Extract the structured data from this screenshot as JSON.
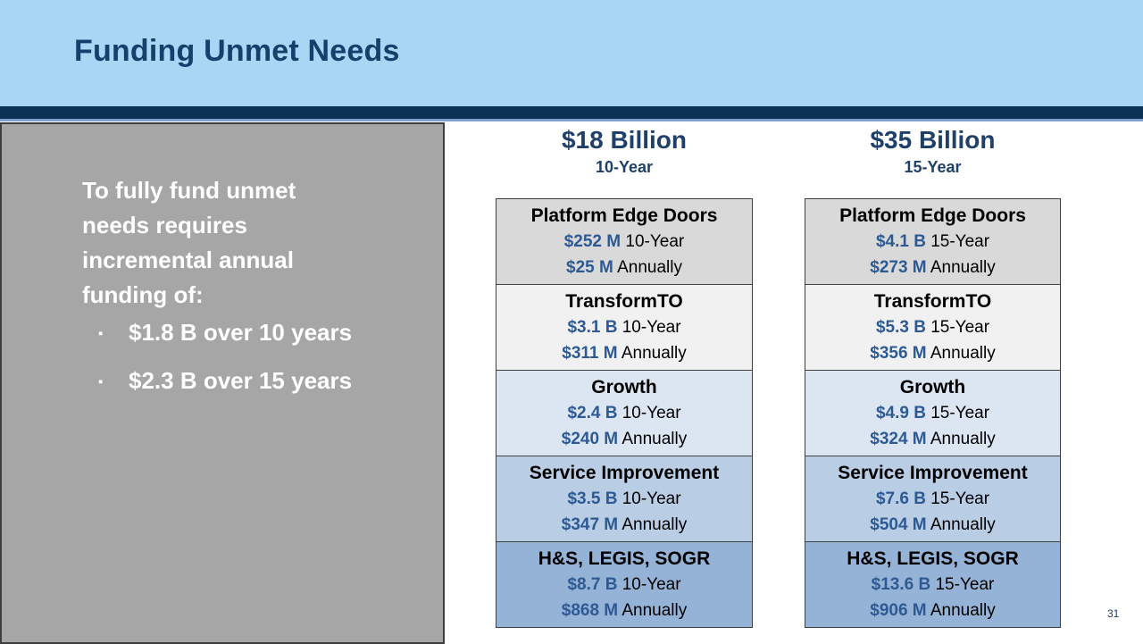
{
  "slide": {
    "title": "Funding Unmet Needs",
    "page_number": "31"
  },
  "sidebar": {
    "intro_lines": [
      "To fully fund unmet",
      "needs requires",
      "incremental annual",
      "funding of:"
    ],
    "bullet_glyph": "▪",
    "bullets": [
      "$1.8 B over 10 years",
      "$2.3 B over 15 years"
    ]
  },
  "columns": [
    {
      "header_amount": "$18 Billion",
      "header_period": "10-Year",
      "boxes": [
        {
          "title": "Platform Edge Doors",
          "total_value": "$252 M",
          "total_label": "10-Year",
          "annual_value": "$25 M",
          "annual_label": "Annually"
        },
        {
          "title": "TransformTO",
          "total_value": "$3.1 B",
          "total_label": "10-Year",
          "annual_value": "$311 M",
          "annual_label": "Annually"
        },
        {
          "title": "Growth",
          "total_value": "$2.4 B",
          "total_label": "10-Year",
          "annual_value": "$240 M",
          "annual_label": "Annually"
        },
        {
          "title": "Service Improvement",
          "total_value": "$3.5 B",
          "total_label": "10-Year",
          "annual_value": "$347 M",
          "annual_label": "Annually"
        },
        {
          "title": "H&S, LEGIS, SOGR",
          "total_value": "$8.7 B",
          "total_label": "10-Year",
          "annual_value": "$868 M",
          "annual_label": "Annually"
        }
      ]
    },
    {
      "header_amount": "$35 Billion",
      "header_period": "15-Year",
      "boxes": [
        {
          "title": "Platform Edge Doors",
          "total_value": "$4.1 B",
          "total_label": "15-Year",
          "annual_value": "$273 M",
          "annual_label": "Annually"
        },
        {
          "title": "TransformTO",
          "total_value": "$5.3 B",
          "total_label": "15-Year",
          "annual_value": "$356 M",
          "annual_label": "Annually"
        },
        {
          "title": "Growth",
          "total_value": "$4.9 B",
          "total_label": "15-Year",
          "annual_value": "$324 M",
          "annual_label": "Annually"
        },
        {
          "title": "Service Improvement",
          "total_value": "$7.6 B",
          "total_label": "15-Year",
          "annual_value": "$504 M",
          "annual_label": "Annually"
        },
        {
          "title": "H&S, LEGIS, SOGR",
          "total_value": "$13.6 B",
          "total_label": "15-Year",
          "annual_value": "$906 M",
          "annual_label": "Annually"
        }
      ]
    }
  ],
  "colors": {
    "header_band": "#a9d6f4",
    "divider_bar": "#0b3254",
    "divider_underline": "#7e9fcc",
    "title_text": "#15406b",
    "sidebar_bg": "#a6a6a6",
    "sidebar_border": "#3e3e3e",
    "sidebar_text": "#ffffff",
    "column_header_text": "#1f4068",
    "money_text": "#2e5a94",
    "box_border": "#404040",
    "tier_backgrounds": [
      "#d9d9d9",
      "#f1f1f1",
      "#dce6f2",
      "#b9cde5",
      "#95b3d7"
    ]
  }
}
